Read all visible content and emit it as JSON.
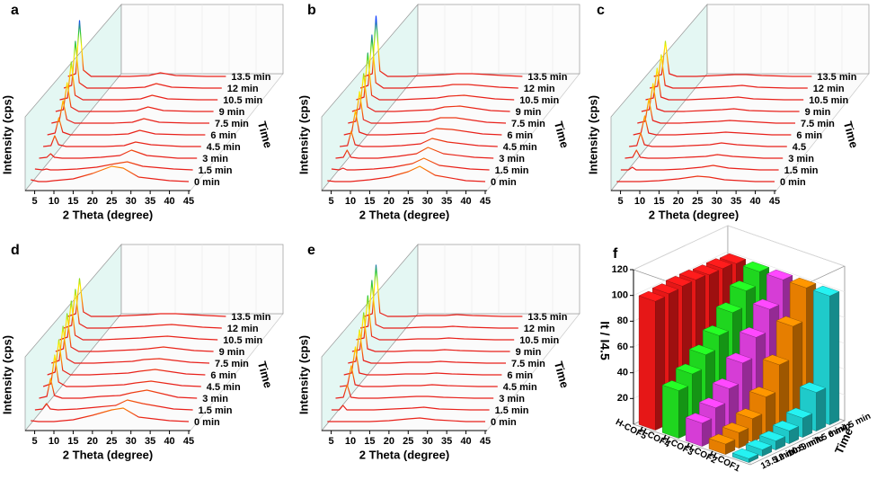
{
  "chart_data": [
    {
      "type": "waterfall",
      "panel": "a",
      "xlabel": "2 Theta (degree)",
      "ylabel": "Intensity (cps)",
      "zlabel": "Time",
      "xlim": [
        3,
        45
      ],
      "xticks": [
        5,
        10,
        15,
        20,
        25,
        30,
        35,
        40,
        45
      ],
      "ylim": [
        0,
        100
      ],
      "color": "#e8201a",
      "colormap": [
        "#e8201a",
        "#ff9900",
        "#ffee00",
        "#33cc33",
        "#1040ff"
      ],
      "x": [
        4,
        6,
        7,
        8,
        10,
        15,
        20,
        25,
        28,
        32,
        40,
        45
      ],
      "series": [
        {
          "name": "0 min",
          "values": [
            5,
            3,
            3,
            3,
            4,
            6,
            12,
            20,
            18,
            8,
            4,
            3
          ]
        },
        {
          "name": "1.5 min",
          "values": [
            4,
            3,
            4,
            3,
            3,
            4,
            6,
            10,
            12,
            7,
            4,
            3
          ]
        },
        {
          "name": "3 min",
          "values": [
            3,
            4,
            8,
            4,
            3,
            3,
            4,
            6,
            12,
            6,
            3,
            3
          ]
        },
        {
          "name": "4.5 min",
          "values": [
            3,
            4,
            15,
            5,
            3,
            3,
            3,
            4,
            8,
            5,
            3,
            3
          ]
        },
        {
          "name": "6 min",
          "values": [
            3,
            5,
            22,
            6,
            3,
            3,
            3,
            4,
            8,
            4,
            3,
            3
          ]
        },
        {
          "name": "7.5 min",
          "values": [
            3,
            5,
            28,
            7,
            3,
            3,
            3,
            4,
            8,
            4,
            3,
            3
          ]
        },
        {
          "name": "9 min",
          "values": [
            3,
            5,
            35,
            8,
            3,
            3,
            3,
            4,
            8,
            4,
            3,
            3
          ]
        },
        {
          "name": "10.5 min",
          "values": [
            3,
            5,
            45,
            8,
            3,
            3,
            3,
            4,
            8,
            4,
            3,
            3
          ]
        },
        {
          "name": "12 min",
          "values": [
            3,
            6,
            55,
            9,
            3,
            3,
            3,
            4,
            8,
            4,
            3,
            3
          ]
        },
        {
          "name": "13.5 min",
          "values": [
            3,
            6,
            65,
            10,
            3,
            3,
            3,
            4,
            7,
            4,
            3,
            3
          ]
        }
      ]
    },
    {
      "type": "waterfall",
      "panel": "b",
      "xlabel": "2 Theta (degree)",
      "ylabel": "Intensity (cps)",
      "zlabel": "Time",
      "xlim": [
        3,
        45
      ],
      "xticks": [
        5,
        10,
        15,
        20,
        25,
        30,
        35,
        40,
        45
      ],
      "ylim": [
        0,
        100
      ],
      "color": "#e8201a",
      "colormap": [
        "#e8201a",
        "#ff9900",
        "#ffee00",
        "#33cc33",
        "#1040ff"
      ],
      "x": [
        4,
        6,
        7,
        8,
        10,
        15,
        20,
        25,
        28,
        32,
        40,
        45
      ],
      "series": [
        {
          "name": "0 min",
          "values": [
            4,
            3,
            3,
            3,
            3,
            5,
            8,
            14,
            20,
            10,
            4,
            3
          ]
        },
        {
          "name": "1.5 min",
          "values": [
            4,
            3,
            5,
            3,
            3,
            4,
            6,
            10,
            16,
            8,
            4,
            3
          ]
        },
        {
          "name": "3 min",
          "values": [
            3,
            4,
            12,
            4,
            3,
            3,
            5,
            8,
            15,
            8,
            4,
            3
          ]
        },
        {
          "name": "4.5 min",
          "values": [
            3,
            4,
            20,
            5,
            3,
            3,
            4,
            6,
            12,
            8,
            4,
            3
          ]
        },
        {
          "name": "6 min",
          "values": [
            3,
            5,
            30,
            6,
            3,
            3,
            4,
            5,
            10,
            9,
            4,
            3
          ]
        },
        {
          "name": "7.5 min",
          "values": [
            3,
            5,
            38,
            7,
            3,
            3,
            4,
            5,
            9,
            9,
            4,
            3
          ]
        },
        {
          "name": "9 min",
          "values": [
            3,
            6,
            45,
            8,
            3,
            3,
            4,
            5,
            8,
            9,
            4,
            3
          ]
        },
        {
          "name": "10.5 min",
          "values": [
            3,
            6,
            55,
            8,
            3,
            3,
            4,
            5,
            7,
            8,
            4,
            3
          ]
        },
        {
          "name": "12 min",
          "values": [
            3,
            6,
            62,
            9,
            3,
            3,
            4,
            5,
            7,
            7,
            4,
            3
          ]
        },
        {
          "name": "13.5 min",
          "values": [
            3,
            6,
            70,
            9,
            3,
            3,
            4,
            5,
            6,
            6,
            4,
            3
          ]
        }
      ]
    },
    {
      "type": "waterfall",
      "panel": "c",
      "xlabel": "2 Theta (degree)",
      "ylabel": "Intensity (cps)",
      "zlabel": "Time",
      "xlim": [
        3,
        45
      ],
      "xticks": [
        5,
        10,
        15,
        20,
        25,
        30,
        35,
        40,
        45
      ],
      "ylim": [
        0,
        100
      ],
      "color": "#e8201a",
      "colormap": [
        "#e8201a",
        "#ff9900",
        "#ffee00",
        "#33cc33",
        "#1040ff"
      ],
      "x": [
        4,
        6,
        7,
        8,
        10,
        15,
        20,
        25,
        28,
        32,
        40,
        45
      ],
      "series": [
        {
          "name": "0 min",
          "values": [
            3,
            3,
            3,
            3,
            3,
            4,
            6,
            9,
            8,
            5,
            3,
            3
          ]
        },
        {
          "name": "1.5 min",
          "values": [
            3,
            3,
            6,
            3,
            3,
            3,
            4,
            6,
            8,
            5,
            3,
            3
          ]
        },
        {
          "name": "3 min",
          "values": [
            3,
            4,
            12,
            4,
            3,
            3,
            4,
            5,
            7,
            5,
            3,
            3
          ]
        },
        {
          "name": "4.5",
          "values": [
            3,
            4,
            18,
            5,
            3,
            3,
            4,
            5,
            7,
            5,
            3,
            3
          ]
        },
        {
          "name": "6 min",
          "values": [
            3,
            5,
            24,
            5,
            3,
            3,
            4,
            5,
            6,
            5,
            3,
            3
          ]
        },
        {
          "name": "7.5 min",
          "values": [
            3,
            5,
            30,
            6,
            3,
            3,
            4,
            5,
            6,
            5,
            3,
            3
          ]
        },
        {
          "name": "9 min",
          "values": [
            3,
            5,
            34,
            6,
            3,
            3,
            4,
            5,
            6,
            4,
            3,
            3
          ]
        },
        {
          "name": "10.5 min",
          "values": [
            3,
            5,
            38,
            6,
            3,
            3,
            4,
            5,
            6,
            4,
            3,
            3
          ]
        },
        {
          "name": "12 min",
          "values": [
            3,
            5,
            40,
            6,
            3,
            3,
            4,
            5,
            6,
            4,
            3,
            3
          ]
        },
        {
          "name": "13.5 min",
          "values": [
            3,
            5,
            42,
            6,
            3,
            3,
            4,
            5,
            5,
            4,
            3,
            3
          ]
        }
      ]
    },
    {
      "type": "waterfall",
      "panel": "d",
      "xlabel": "2 Theta (degree)",
      "ylabel": "Intensity (cps)",
      "zlabel": "Time",
      "xlim": [
        3,
        45
      ],
      "xticks": [
        5,
        10,
        15,
        20,
        25,
        30,
        35,
        40,
        45
      ],
      "ylim": [
        0,
        100
      ],
      "color": "#e8201a",
      "colormap": [
        "#e8201a",
        "#ff9900",
        "#ffee00",
        "#33cc33",
        "#1040ff"
      ],
      "x": [
        4,
        6,
        7,
        8,
        10,
        15,
        20,
        25,
        28,
        32,
        40,
        45
      ],
      "series": [
        {
          "name": "0 min",
          "values": [
            4,
            3,
            3,
            3,
            3,
            5,
            10,
            16,
            18,
            8,
            4,
            3
          ]
        },
        {
          "name": "1.5 min",
          "values": [
            3,
            4,
            10,
            4,
            3,
            4,
            6,
            8,
            14,
            10,
            4,
            3
          ]
        },
        {
          "name": "3 min",
          "values": [
            3,
            5,
            25,
            6,
            3,
            3,
            5,
            6,
            9,
            12,
            4,
            3
          ]
        },
        {
          "name": "4.5 min",
          "values": [
            3,
            6,
            38,
            8,
            3,
            3,
            4,
            5,
            7,
            9,
            4,
            3
          ]
        },
        {
          "name": "6 min",
          "values": [
            3,
            6,
            42,
            8,
            3,
            3,
            4,
            5,
            7,
            9,
            4,
            3
          ]
        },
        {
          "name": "7.5 min",
          "values": [
            3,
            6,
            44,
            8,
            3,
            3,
            4,
            5,
            7,
            8,
            4,
            3
          ]
        },
        {
          "name": "9 min",
          "values": [
            3,
            6,
            45,
            8,
            3,
            3,
            4,
            5,
            6,
            8,
            4,
            3
          ]
        },
        {
          "name": "10.5 min",
          "values": [
            3,
            6,
            46,
            8,
            3,
            3,
            4,
            5,
            6,
            7,
            4,
            3
          ]
        },
        {
          "name": "12 min",
          "values": [
            3,
            6,
            46,
            8,
            3,
            3,
            4,
            5,
            6,
            7,
            4,
            3
          ]
        },
        {
          "name": "13.5 min",
          "values": [
            3,
            6,
            45,
            8,
            3,
            3,
            4,
            5,
            6,
            6,
            4,
            3
          ]
        }
      ]
    },
    {
      "type": "waterfall",
      "panel": "e",
      "xlabel": "2 Theta (degree)",
      "ylabel": "Intensity (cps)",
      "zlabel": "Time",
      "xlim": [
        3,
        45
      ],
      "xticks": [
        5,
        10,
        15,
        20,
        25,
        30,
        35,
        40,
        45
      ],
      "ylim": [
        0,
        100
      ],
      "color": "#e8201a",
      "colormap": [
        "#e8201a",
        "#ff9900",
        "#ffee00",
        "#33cc33",
        "#1040ff"
      ],
      "x": [
        4,
        6,
        7,
        8,
        10,
        15,
        20,
        25,
        28,
        32,
        40,
        45
      ],
      "series": [
        {
          "name": "0 min",
          "values": [
            3,
            3,
            3,
            3,
            3,
            3,
            4,
            6,
            7,
            5,
            3,
            3
          ]
        },
        {
          "name": "1.5 min",
          "values": [
            3,
            3,
            8,
            3,
            3,
            3,
            4,
            5,
            6,
            4,
            3,
            3
          ]
        },
        {
          "name": "3 min",
          "values": [
            3,
            4,
            18,
            4,
            3,
            3,
            4,
            5,
            5,
            4,
            3,
            3
          ]
        },
        {
          "name": "4.5 min",
          "values": [
            3,
            4,
            26,
            5,
            3,
            3,
            4,
            4,
            5,
            4,
            3,
            3
          ]
        },
        {
          "name": "6 min",
          "values": [
            3,
            5,
            34,
            5,
            3,
            3,
            4,
            4,
            5,
            4,
            3,
            3
          ]
        },
        {
          "name": "7.5 min",
          "values": [
            3,
            5,
            40,
            6,
            3,
            3,
            4,
            4,
            5,
            4,
            3,
            3
          ]
        },
        {
          "name": "9 min",
          "values": [
            3,
            5,
            46,
            6,
            3,
            3,
            4,
            4,
            5,
            4,
            3,
            3
          ]
        },
        {
          "name": "10.5 min",
          "values": [
            3,
            5,
            52,
            7,
            3,
            3,
            4,
            4,
            5,
            4,
            3,
            3
          ]
        },
        {
          "name": "12 min",
          "values": [
            3,
            5,
            56,
            7,
            3,
            3,
            4,
            4,
            5,
            4,
            3,
            3
          ]
        },
        {
          "name": "13.5 min",
          "values": [
            3,
            6,
            60,
            7,
            3,
            3,
            4,
            4,
            5,
            4,
            3,
            3
          ]
        }
      ]
    },
    {
      "type": "bar3d",
      "panel": "f",
      "ylabel": "It / I4.5",
      "zlabel": "Time",
      "categories": [
        "4.5 min",
        "6 min",
        "7.5 min",
        "9 min",
        "10.5 min",
        "12 min",
        "13.5 min"
      ],
      "ylim": [
        0,
        120
      ],
      "yticks": [
        20,
        40,
        60,
        80,
        100,
        120
      ],
      "series": [
        {
          "name": "H-COF5",
          "color": "#ff1a1a",
          "values": [
            100,
            101,
            101,
            102,
            102,
            101,
            100
          ]
        },
        {
          "name": "H-COF4",
          "color": "#22ee22",
          "values": [
            100,
            90,
            78,
            65,
            55,
            45,
            37
          ]
        },
        {
          "name": "H-COF3",
          "color": "#ee44ee",
          "values": [
            100,
            82,
            65,
            50,
            35,
            25,
            18
          ]
        },
        {
          "name": "H-COF2",
          "color": "#ff8c00",
          "values": [
            100,
            75,
            50,
            30,
            18,
            12,
            8
          ]
        },
        {
          "name": "H-COF1",
          "color": "#22e0e0",
          "values": [
            100,
            30,
            15,
            10,
            7,
            5,
            3
          ]
        }
      ]
    }
  ]
}
